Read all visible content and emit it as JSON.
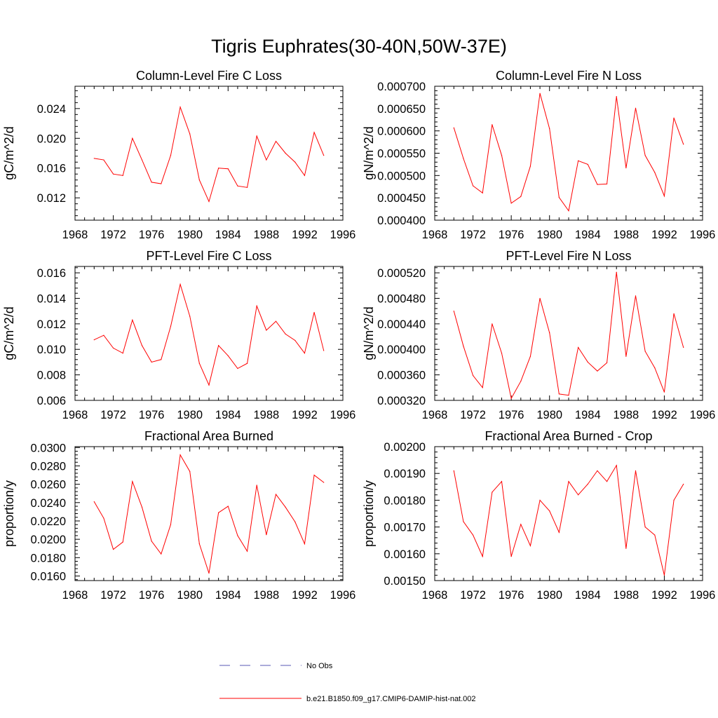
{
  "figure": {
    "title": "Tigris Euphrates(30-40N,50W-37E)"
  },
  "legend": [
    {
      "label": "No Obs",
      "style": "dashed",
      "color": "#5a5ab4"
    },
    {
      "label": "b.e21.B1850.f09_g17.CMIP6-DAMIP-hist-nat.002",
      "style": "solid",
      "color": "#ff0000"
    }
  ],
  "colors": {
    "series": "#ff0000",
    "axis": "#000000"
  },
  "chart_data": [
    {
      "type": "line",
      "title": "Column-Level Fire C Loss",
      "ylabel": "gC/m^2/d",
      "xlabel": "",
      "xlim": [
        1968,
        1996
      ],
      "ylim": [
        0.009,
        0.027
      ],
      "xticks": [
        "1968",
        "1972",
        "1976",
        "1980",
        "1984",
        "1988",
        "1992",
        "1996"
      ],
      "yticks": [
        "0.012",
        "0.016",
        "0.020",
        "0.024"
      ],
      "ytick_values": [
        0.012,
        0.016,
        0.02,
        0.024
      ],
      "x": [
        1970,
        1971,
        1972,
        1973,
        1974,
        1975,
        1976,
        1977,
        1978,
        1979,
        1980,
        1981,
        1982,
        1983,
        1984,
        1985,
        1986,
        1987,
        1988,
        1989,
        1990,
        1991,
        1992,
        1993,
        1994
      ],
      "series": [
        {
          "values": [
            0.0173,
            0.0171,
            0.0152,
            0.015,
            0.02,
            0.0171,
            0.0141,
            0.0139,
            0.0177,
            0.0242,
            0.0206,
            0.0144,
            0.0115,
            0.016,
            0.0159,
            0.0136,
            0.0134,
            0.0203,
            0.0171,
            0.0196,
            0.018,
            0.0168,
            0.015,
            0.0208,
            0.0177
          ]
        }
      ]
    },
    {
      "type": "line",
      "title": "Column-Level Fire N Loss",
      "ylabel": "gN/m^2/d",
      "xlabel": "",
      "xlim": [
        1968,
        1996
      ],
      "ylim": [
        0.0004,
        0.0007
      ],
      "xticks": [
        "1968",
        "1972",
        "1976",
        "1980",
        "1984",
        "1988",
        "1992",
        "1996"
      ],
      "yticks": [
        "0.000400",
        "0.000450",
        "0.000500",
        "0.000550",
        "0.000600",
        "0.000650",
        "0.000700"
      ],
      "ytick_values": [
        0.0004,
        0.00045,
        0.0005,
        0.00055,
        0.0006,
        0.00065,
        0.0007
      ],
      "x": [
        1970,
        1971,
        1972,
        1973,
        1974,
        1975,
        1976,
        1977,
        1978,
        1979,
        1980,
        1981,
        1982,
        1983,
        1984,
        1985,
        1986,
        1987,
        1988,
        1989,
        1990,
        1991,
        1992,
        1993,
        1994
      ],
      "series": [
        {
          "values": [
            0.000607,
            0.000538,
            0.000477,
            0.000461,
            0.000614,
            0.000545,
            0.000438,
            0.000453,
            0.000521,
            0.000684,
            0.000605,
            0.000451,
            0.000421,
            0.000533,
            0.000525,
            0.00048,
            0.000481,
            0.000677,
            0.000517,
            0.000651,
            0.000545,
            0.000507,
            0.000454,
            0.000629,
            0.00057
          ]
        }
      ]
    },
    {
      "type": "line",
      "title": "PFT-Level Fire C Loss",
      "ylabel": "gC/m^2/d",
      "xlabel": "",
      "xlim": [
        1968,
        1996
      ],
      "ylim": [
        0.006,
        0.0165
      ],
      "xticks": [
        "1968",
        "1972",
        "1976",
        "1980",
        "1984",
        "1988",
        "1992",
        "1996"
      ],
      "yticks": [
        "0.006",
        "0.008",
        "0.010",
        "0.012",
        "0.014",
        "0.016"
      ],
      "ytick_values": [
        0.006,
        0.008,
        0.01,
        0.012,
        0.014,
        0.016
      ],
      "x": [
        1970,
        1971,
        1972,
        1973,
        1974,
        1975,
        1976,
        1977,
        1978,
        1979,
        1980,
        1981,
        1982,
        1983,
        1984,
        1985,
        1986,
        1987,
        1988,
        1989,
        1990,
        1991,
        1992,
        1993,
        1994
      ],
      "series": [
        {
          "values": [
            0.01075,
            0.0111,
            0.0101,
            0.0097,
            0.0123,
            0.0103,
            0.009,
            0.0092,
            0.0118,
            0.0151,
            0.0126,
            0.0089,
            0.0072,
            0.0103,
            0.0095,
            0.0085,
            0.0089,
            0.0134,
            0.0115,
            0.0122,
            0.0112,
            0.0107,
            0.0097,
            0.0129,
            0.0099
          ]
        }
      ]
    },
    {
      "type": "line",
      "title": "PFT-Level Fire N Loss",
      "ylabel": "gN/m^2/d",
      "xlabel": "",
      "xlim": [
        1968,
        1996
      ],
      "ylim": [
        0.00032,
        0.00053
      ],
      "xticks": [
        "1968",
        "1972",
        "1976",
        "1980",
        "1984",
        "1988",
        "1992",
        "1996"
      ],
      "yticks": [
        "0.000320",
        "0.000360",
        "0.000400",
        "0.000440",
        "0.000480",
        "0.000520"
      ],
      "ytick_values": [
        0.00032,
        0.00036,
        0.0004,
        0.00044,
        0.00048,
        0.00052
      ],
      "x": [
        1970,
        1971,
        1972,
        1973,
        1974,
        1975,
        1976,
        1977,
        1978,
        1979,
        1980,
        1981,
        1982,
        1983,
        1984,
        1985,
        1986,
        1987,
        1988,
        1989,
        1990,
        1991,
        1992,
        1993,
        1994
      ],
      "series": [
        {
          "values": [
            0.00046,
            0.000405,
            0.000359,
            0.00034,
            0.00044,
            0.000394,
            0.000323,
            0.00035,
            0.000389,
            0.00048,
            0.000426,
            0.00033,
            0.000328,
            0.000403,
            0.00038,
            0.000366,
            0.000379,
            0.000521,
            0.000389,
            0.000484,
            0.000397,
            0.000371,
            0.000333,
            0.000456,
            0.000403
          ]
        }
      ]
    },
    {
      "type": "line",
      "title": "Fractional Area Burned",
      "ylabel": "proportion/y",
      "xlabel": "",
      "xlim": [
        1968,
        1996
      ],
      "ylim": [
        0.0155,
        0.0301
      ],
      "xticks": [
        "1968",
        "1972",
        "1976",
        "1980",
        "1984",
        "1988",
        "1992",
        "1996"
      ],
      "yticks": [
        "0.0160",
        "0.0180",
        "0.0200",
        "0.0220",
        "0.0240",
        "0.0260",
        "0.0280",
        "0.0300"
      ],
      "ytick_values": [
        0.016,
        0.018,
        0.02,
        0.022,
        0.024,
        0.026,
        0.028,
        0.03
      ],
      "x": [
        1970,
        1971,
        1972,
        1973,
        1974,
        1975,
        1976,
        1977,
        1978,
        1979,
        1980,
        1981,
        1982,
        1983,
        1984,
        1985,
        1986,
        1987,
        1988,
        1989,
        1990,
        1991,
        1992,
        1993,
        1994
      ],
      "series": [
        {
          "values": [
            0.0241,
            0.0223,
            0.0189,
            0.0197,
            0.0263,
            0.0235,
            0.0198,
            0.0184,
            0.0216,
            0.0292,
            0.0274,
            0.0195,
            0.0163,
            0.0229,
            0.0236,
            0.0204,
            0.0187,
            0.0259,
            0.0205,
            0.0249,
            0.0235,
            0.0219,
            0.0195,
            0.027,
            0.0262
          ]
        }
      ]
    },
    {
      "type": "line",
      "title": "Fractional Area Burned - Crop",
      "ylabel": "proportion/y",
      "xlabel": "",
      "xlim": [
        1968,
        1996
      ],
      "ylim": [
        0.0015,
        0.002
      ],
      "xticks": [
        "1968",
        "1972",
        "1976",
        "1980",
        "1984",
        "1988",
        "1992",
        "1996"
      ],
      "yticks": [
        "0.00150",
        "0.00160",
        "0.00170",
        "0.00180",
        "0.00190",
        "0.00200"
      ],
      "ytick_values": [
        0.0015,
        0.0016,
        0.0017,
        0.0018,
        0.0019,
        0.002
      ],
      "x": [
        1970,
        1971,
        1972,
        1973,
        1974,
        1975,
        1976,
        1977,
        1978,
        1979,
        1980,
        1981,
        1982,
        1983,
        1984,
        1985,
        1986,
        1987,
        1988,
        1989,
        1990,
        1991,
        1992,
        1993,
        1994
      ],
      "series": [
        {
          "values": [
            0.00191,
            0.00172,
            0.00167,
            0.00159,
            0.00183,
            0.00187,
            0.00159,
            0.00171,
            0.00163,
            0.0018,
            0.00176,
            0.00168,
            0.00187,
            0.00182,
            0.00186,
            0.00191,
            0.00187,
            0.00193,
            0.00162,
            0.00191,
            0.0017,
            0.00167,
            0.00152,
            0.0018,
            0.00186
          ]
        }
      ]
    }
  ]
}
